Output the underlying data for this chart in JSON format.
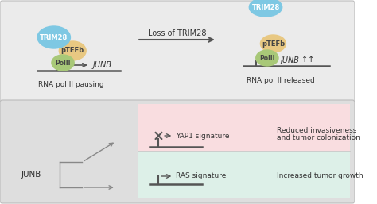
{
  "bg_top": "#ebebeb",
  "bg_bottom": "#dedede",
  "bg_pink": "#f9dde0",
  "bg_mint": "#ddf0e8",
  "trim28_color": "#7ec8e3",
  "ptefb_color": "#e8c882",
  "polii_color": "#a8c878",
  "arrow_color": "#555555",
  "text_color": "#333333",
  "line_color": "#555555",
  "top_label_left": "RNA pol II pausing",
  "top_label_right": "RNA pol II released",
  "mid_label": "Loss of TRIM28",
  "junb_label": "JUNB",
  "yap1_sig": "YAP1 signature",
  "ras_sig": "RAS signature",
  "reduced_text1": "Reduced invasiveness",
  "reduced_text2": "and tumor colonization",
  "increased_text": "Increased tumor growth"
}
